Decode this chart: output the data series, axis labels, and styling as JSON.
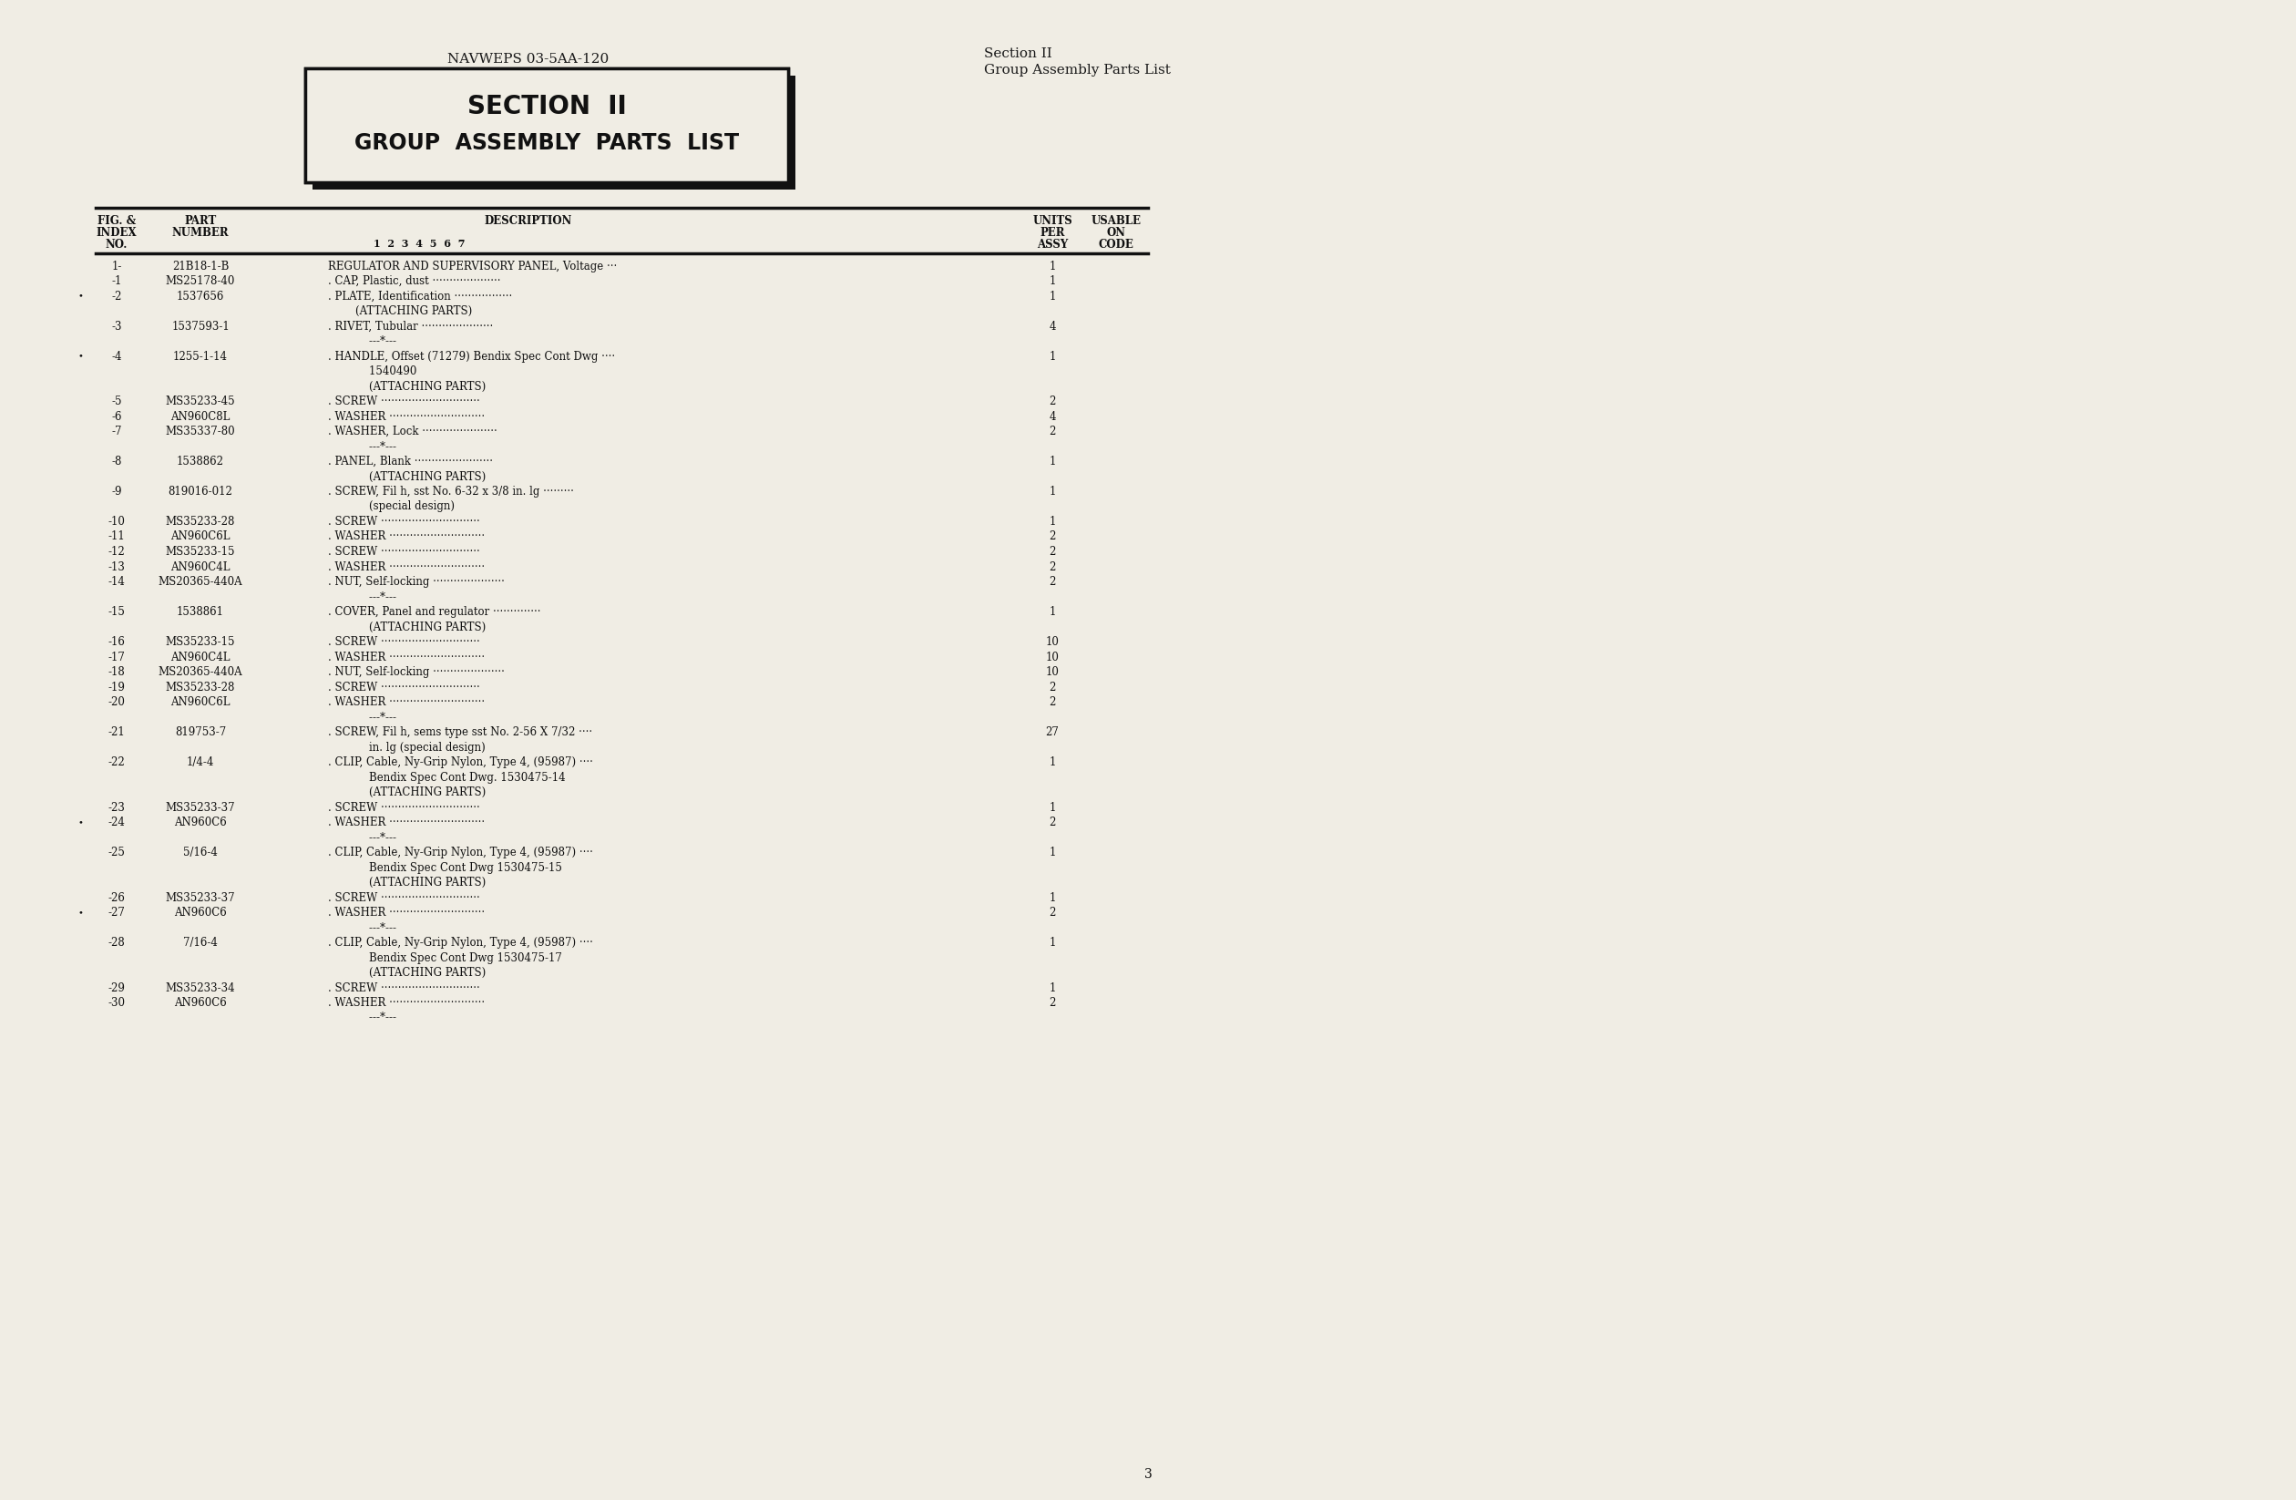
{
  "bg_color": "#f0ede4",
  "header_left": "NAVWEPS 03-5AA-120",
  "header_right_line1": "Section II",
  "header_right_line2": "Group Assembly Parts List",
  "box_title_line1": "SECTION  II",
  "box_title_line2": "GROUP  ASSEMBLY  PARTS  LIST",
  "page_number": "3",
  "rows": [
    {
      "idx": "1-",
      "part": "21B18-1-B",
      "desc": "REGULATOR AND SUPERVISORY PANEL, Voltage ···",
      "qty": "1",
      "bullet": false
    },
    {
      "idx": "-1",
      "part": "MS25178-40",
      "desc": ". CAP, Plastic, dust ····················",
      "qty": "1",
      "bullet": false
    },
    {
      "idx": "-2",
      "part": "1537656",
      "desc": ". PLATE, Identification ·················",
      "qty": "1",
      "bullet": true
    },
    {
      "idx": "",
      "part": "",
      "desc": "        (ATTACHING PARTS)",
      "qty": "",
      "bullet": false
    },
    {
      "idx": "-3",
      "part": "1537593-1",
      "desc": ". RIVET, Tubular ·····················",
      "qty": "4",
      "bullet": false
    },
    {
      "idx": "",
      "part": "",
      "desc": "            ---*---",
      "qty": "",
      "bullet": false
    },
    {
      "idx": "-4",
      "part": "1255-1-14",
      "desc": ". HANDLE, Offset (71279) Bendix Spec Cont Dwg ····",
      "qty": "1",
      "bullet": true
    },
    {
      "idx": "",
      "part": "",
      "desc": "            1540490",
      "qty": "",
      "bullet": false
    },
    {
      "idx": "",
      "part": "",
      "desc": "            (ATTACHING PARTS)",
      "qty": "",
      "bullet": false
    },
    {
      "idx": "-5",
      "part": "MS35233-45",
      "desc": ". SCREW ·····························",
      "qty": "2",
      "bullet": false
    },
    {
      "idx": "-6",
      "part": "AN960C8L",
      "desc": ". WASHER ····························",
      "qty": "4",
      "bullet": false
    },
    {
      "idx": "-7",
      "part": "MS35337-80",
      "desc": ". WASHER, Lock ······················",
      "qty": "2",
      "bullet": false
    },
    {
      "idx": "",
      "part": "",
      "desc": "            ---*---",
      "qty": "",
      "bullet": false
    },
    {
      "idx": "-8",
      "part": "1538862",
      "desc": ". PANEL, Blank ·······················",
      "qty": "1",
      "bullet": false
    },
    {
      "idx": "",
      "part": "",
      "desc": "            (ATTACHING PARTS)",
      "qty": "",
      "bullet": false
    },
    {
      "idx": "-9",
      "part": "819016-012",
      "desc": ". SCREW, Fil h, sst No. 6-32 x 3/8 in. lg ·········",
      "qty": "1",
      "bullet": false
    },
    {
      "idx": "",
      "part": "",
      "desc": "            (special design)",
      "qty": "",
      "bullet": false
    },
    {
      "idx": "-10",
      "part": "MS35233-28",
      "desc": ". SCREW ·····························",
      "qty": "1",
      "bullet": false
    },
    {
      "idx": "-11",
      "part": "AN960C6L",
      "desc": ". WASHER ····························",
      "qty": "2",
      "bullet": false
    },
    {
      "idx": "-12",
      "part": "MS35233-15",
      "desc": ". SCREW ·····························",
      "qty": "2",
      "bullet": false
    },
    {
      "idx": "-13",
      "part": "AN960C4L",
      "desc": ". WASHER ····························",
      "qty": "2",
      "bullet": false
    },
    {
      "idx": "-14",
      "part": "MS20365-440A",
      "desc": ". NUT, Self-locking ·····················",
      "qty": "2",
      "bullet": false
    },
    {
      "idx": "",
      "part": "",
      "desc": "            ---*---",
      "qty": "",
      "bullet": false
    },
    {
      "idx": "-15",
      "part": "1538861",
      "desc": ". COVER, Panel and regulator ··············",
      "qty": "1",
      "bullet": false
    },
    {
      "idx": "",
      "part": "",
      "desc": "            (ATTACHING PARTS)",
      "qty": "",
      "bullet": false
    },
    {
      "idx": "-16",
      "part": "MS35233-15",
      "desc": ". SCREW ·····························",
      "qty": "10",
      "bullet": false
    },
    {
      "idx": "-17",
      "part": "AN960C4L",
      "desc": ". WASHER ····························",
      "qty": "10",
      "bullet": false
    },
    {
      "idx": "-18",
      "part": "MS20365-440A",
      "desc": ". NUT, Self-locking ·····················",
      "qty": "10",
      "bullet": false
    },
    {
      "idx": "-19",
      "part": "MS35233-28",
      "desc": ". SCREW ·····························",
      "qty": "2",
      "bullet": false
    },
    {
      "idx": "-20",
      "part": "AN960C6L",
      "desc": ". WASHER ····························",
      "qty": "2",
      "bullet": false
    },
    {
      "idx": "",
      "part": "",
      "desc": "            ---*---",
      "qty": "",
      "bullet": false
    },
    {
      "idx": "-21",
      "part": "819753-7",
      "desc": ". SCREW, Fil h, sems type sst No. 2-56 X 7/32 ····",
      "qty": "27",
      "bullet": false
    },
    {
      "idx": "",
      "part": "",
      "desc": "            in. lg (special design)",
      "qty": "",
      "bullet": false
    },
    {
      "idx": "-22",
      "part": "1/4-4",
      "desc": ". CLIP, Cable, Ny-Grip Nylon, Type 4, (95987) ····",
      "qty": "1",
      "bullet": false
    },
    {
      "idx": "",
      "part": "",
      "desc": "            Bendix Spec Cont Dwg. 1530475-14",
      "qty": "",
      "bullet": false
    },
    {
      "idx": "",
      "part": "",
      "desc": "            (ATTACHING PARTS)",
      "qty": "",
      "bullet": false
    },
    {
      "idx": "-23",
      "part": "MS35233-37",
      "desc": ". SCREW ·····························",
      "qty": "1",
      "bullet": false
    },
    {
      "idx": "-24",
      "part": "AN960C6",
      "desc": ". WASHER ····························",
      "qty": "2",
      "bullet": true
    },
    {
      "idx": "",
      "part": "",
      "desc": "            ---*---",
      "qty": "",
      "bullet": false
    },
    {
      "idx": "-25",
      "part": "5/16-4",
      "desc": ". CLIP, Cable, Ny-Grip Nylon, Type 4, (95987) ····",
      "qty": "1",
      "bullet": false
    },
    {
      "idx": "",
      "part": "",
      "desc": "            Bendix Spec Cont Dwg 1530475-15",
      "qty": "",
      "bullet": false
    },
    {
      "idx": "",
      "part": "",
      "desc": "            (ATTACHING PARTS)",
      "qty": "",
      "bullet": false
    },
    {
      "idx": "-26",
      "part": "MS35233-37",
      "desc": ". SCREW ·····························",
      "qty": "1",
      "bullet": false
    },
    {
      "idx": "-27",
      "part": "AN960C6",
      "desc": ". WASHER ····························",
      "qty": "2",
      "bullet": true
    },
    {
      "idx": "",
      "part": "",
      "desc": "            ---*---",
      "qty": "",
      "bullet": false
    },
    {
      "idx": "-28",
      "part": "7/16-4",
      "desc": ". CLIP, Cable, Ny-Grip Nylon, Type 4, (95987) ····",
      "qty": "1",
      "bullet": false
    },
    {
      "idx": "",
      "part": "",
      "desc": "            Bendix Spec Cont Dwg 1530475-17",
      "qty": "",
      "bullet": false
    },
    {
      "idx": "",
      "part": "",
      "desc": "            (ATTACHING PARTS)",
      "qty": "",
      "bullet": false
    },
    {
      "idx": "-29",
      "part": "MS35233-34",
      "desc": ". SCREW ·····························",
      "qty": "1",
      "bullet": false
    },
    {
      "idx": "-30",
      "part": "AN960C6",
      "desc": ". WASHER ····························",
      "qty": "2",
      "bullet": false
    },
    {
      "idx": "",
      "part": "",
      "desc": "            ---*---",
      "qty": "",
      "bullet": false
    }
  ]
}
